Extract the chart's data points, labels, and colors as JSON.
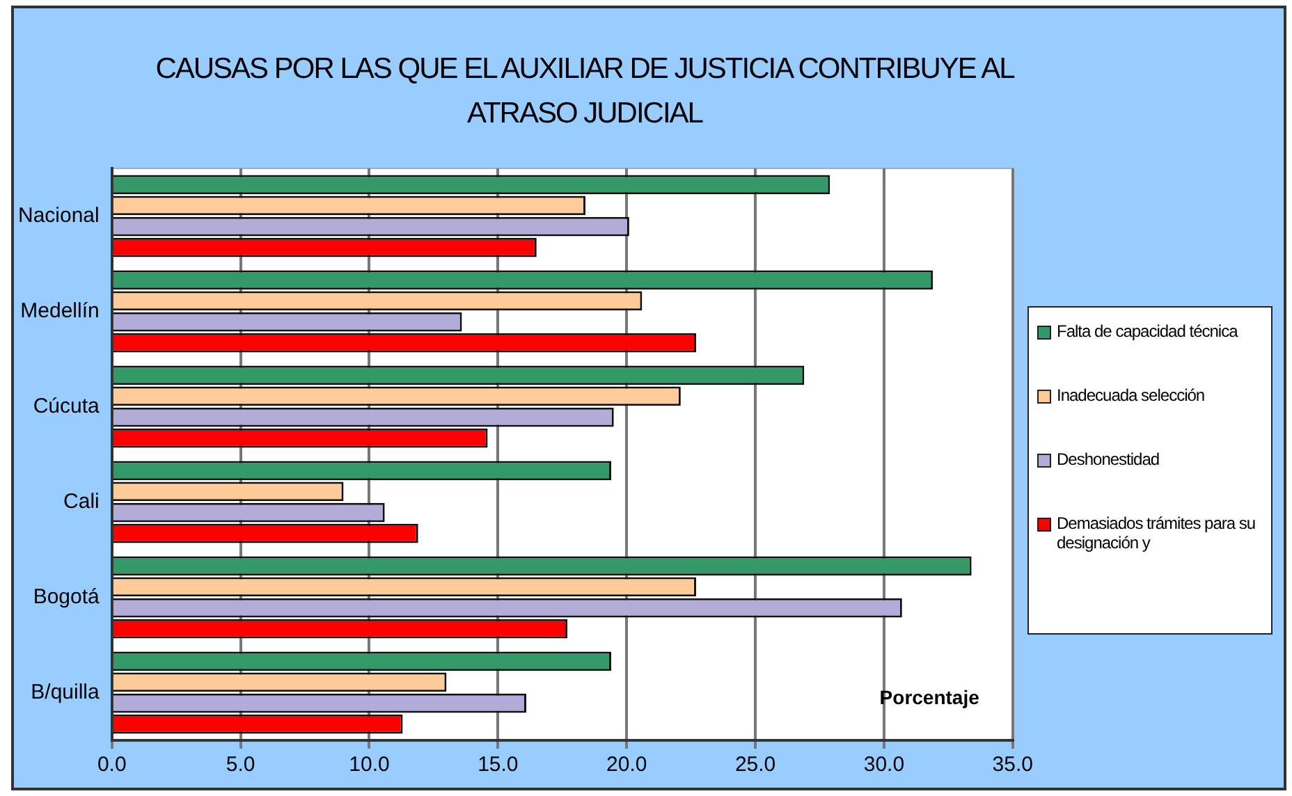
{
  "chart_data": {
    "type": "bar",
    "orientation": "horizontal",
    "title": "CAUSAS POR LAS QUE EL AUXILIAR DE JUSTICIA CONTRIBUYE AL ATRASO JUDICIAL",
    "xlabel": "Porcentaje",
    "categories": [
      "Nacional",
      "Medellín",
      "Cúcuta",
      "Cali",
      "Bogotá",
      "B/quilla"
    ],
    "series": [
      {
        "name": "Falta de capacidad técnica",
        "color": "#339966",
        "values": [
          27.9,
          31.9,
          26.9,
          19.4,
          33.4,
          19.4
        ]
      },
      {
        "name": "Inadecuada selección",
        "color": "#ffcc99",
        "values": [
          18.4,
          20.6,
          22.1,
          9.0,
          22.7,
          13.0
        ]
      },
      {
        "name": "Deshonestidad",
        "color": "#b4acd8",
        "values": [
          20.1,
          13.6,
          19.5,
          10.6,
          30.7,
          16.1
        ]
      },
      {
        "name": "Demasiados trámites para su designación y",
        "color": "#ff0000",
        "values": [
          16.5,
          22.7,
          14.6,
          11.9,
          17.7,
          11.3
        ]
      }
    ],
    "xlim": [
      0,
      35
    ],
    "xticks": [
      {
        "value": 0,
        "label": "0.0"
      },
      {
        "value": 5,
        "label": "5.0"
      },
      {
        "value": 10,
        "label": "10.0"
      },
      {
        "value": 15,
        "label": "15.0"
      },
      {
        "value": 20,
        "label": "20.0"
      },
      {
        "value": 25,
        "label": "25.0"
      },
      {
        "value": 30,
        "label": "30.0"
      },
      {
        "value": 35,
        "label": "35.0"
      }
    ],
    "grid": "x",
    "legend": "right"
  }
}
